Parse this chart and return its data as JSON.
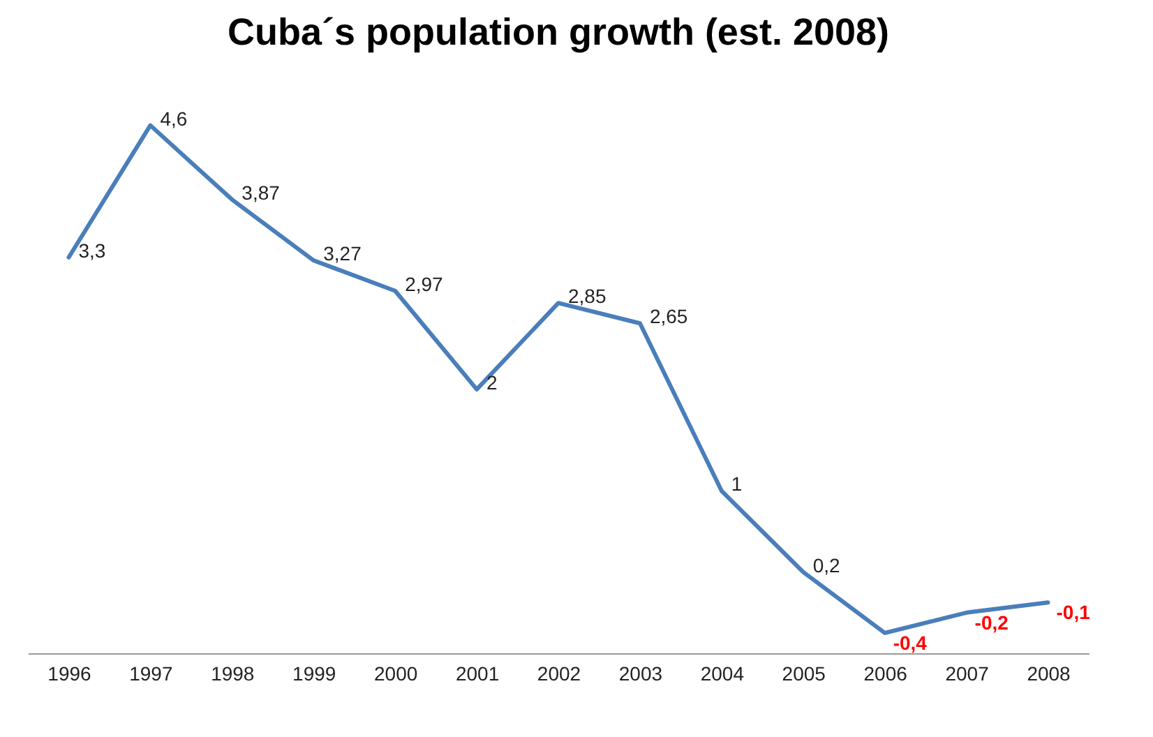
{
  "chart_data": {
    "type": "line",
    "title": "Cuba´s population growth (est. 2008)",
    "categories": [
      "1996",
      "1997",
      "1998",
      "1999",
      "2000",
      "2001",
      "2002",
      "2003",
      "2004",
      "2005",
      "2006",
      "2007",
      "2008"
    ],
    "series": [
      {
        "color": "#4a7ebb",
        "values": [
          3.3,
          4.6,
          3.87,
          3.27,
          2.97,
          2,
          2.85,
          2.65,
          1,
          0.2,
          -0.4,
          -0.2,
          -0.1
        ],
        "value_labels": [
          "3,3",
          "4,6",
          "3,87",
          "3,27",
          "2,97",
          "2",
          "2,85",
          "2,65",
          "1",
          "0,2",
          "-0,4",
          "-0,2",
          "-0,1"
        ]
      }
    ],
    "marker": "none",
    "line_style": "solid",
    "grid": false
  }
}
